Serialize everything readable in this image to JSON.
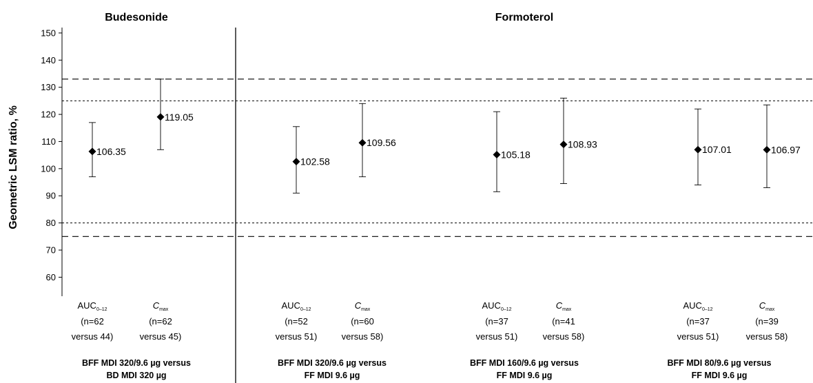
{
  "chart_data": {
    "type": "scatter",
    "subtype": "point-estimate-with-error-bars",
    "ylabel": "Geometric LSM ratio, %",
    "ylim": [
      53,
      152
    ],
    "yticks": [
      60,
      70,
      80,
      90,
      100,
      110,
      120,
      130,
      140,
      150
    ],
    "reference_lines": [
      {
        "y": 133,
        "style": "long-dash"
      },
      {
        "y": 125,
        "style": "dotted"
      },
      {
        "y": 80,
        "style": "dotted"
      },
      {
        "y": 75,
        "style": "long-dash"
      }
    ],
    "panels": [
      {
        "title": "Budesonide"
      },
      {
        "title": "Formoterol"
      }
    ],
    "groups": [
      {
        "label_line1": "BFF MDI 320/9.6 µg versus",
        "label_line2": "BD MDI 320 µg"
      },
      {
        "label_line1": "BFF MDI 320/9.6 µg versus",
        "label_line2": "FF MDI 9.6 µg"
      },
      {
        "label_line1": "BFF MDI 160/9.6 µg versus",
        "label_line2": "FF MDI 9.6 µg"
      },
      {
        "label_line1": "BFF MDI 80/9.6 µg versus",
        "label_line2": "FF MDI 9.6 µg"
      }
    ],
    "points": [
      {
        "group": 0,
        "param_main": "AUC",
        "param_sub": "0–12",
        "param_italic": false,
        "n_line": "(n=62",
        "versus_line": "versus 44)",
        "value": 106.35,
        "value_label": "106.35",
        "lower": 97,
        "upper": 117
      },
      {
        "group": 0,
        "param_main": "C",
        "param_sub": "max",
        "param_italic": true,
        "n_line": "(n=62",
        "versus_line": "versus 45)",
        "value": 119.05,
        "value_label": "119.05",
        "lower": 107,
        "upper": 133
      },
      {
        "group": 1,
        "param_main": "AUC",
        "param_sub": "0–12",
        "param_italic": false,
        "n_line": "(n=52",
        "versus_line": "versus 51)",
        "value": 102.58,
        "value_label": "102.58",
        "lower": 91,
        "upper": 115.5
      },
      {
        "group": 1,
        "param_main": "C",
        "param_sub": "max",
        "param_italic": true,
        "n_line": "(n=60",
        "versus_line": "versus 58)",
        "value": 109.56,
        "value_label": "109.56",
        "lower": 97,
        "upper": 124
      },
      {
        "group": 2,
        "param_main": "AUC",
        "param_sub": "0–12",
        "param_italic": false,
        "n_line": "(n=37",
        "versus_line": "versus 51)",
        "value": 105.18,
        "value_label": "105.18",
        "lower": 91.5,
        "upper": 121
      },
      {
        "group": 2,
        "param_main": "C",
        "param_sub": "max",
        "param_italic": true,
        "n_line": "(n=41",
        "versus_line": "versus 58)",
        "value": 108.93,
        "value_label": "108.93",
        "lower": 94.5,
        "upper": 126
      },
      {
        "group": 3,
        "param_main": "AUC",
        "param_sub": "0–12",
        "param_italic": false,
        "n_line": "(n=37",
        "versus_line": "versus 51)",
        "value": 107.01,
        "value_label": "107.01",
        "lower": 94,
        "upper": 122
      },
      {
        "group": 3,
        "param_main": "C",
        "param_sub": "max",
        "param_italic": true,
        "n_line": "(n=39",
        "versus_line": "versus 58)",
        "value": 106.97,
        "value_label": "106.97",
        "lower": 93,
        "upper": 123.5
      }
    ]
  }
}
